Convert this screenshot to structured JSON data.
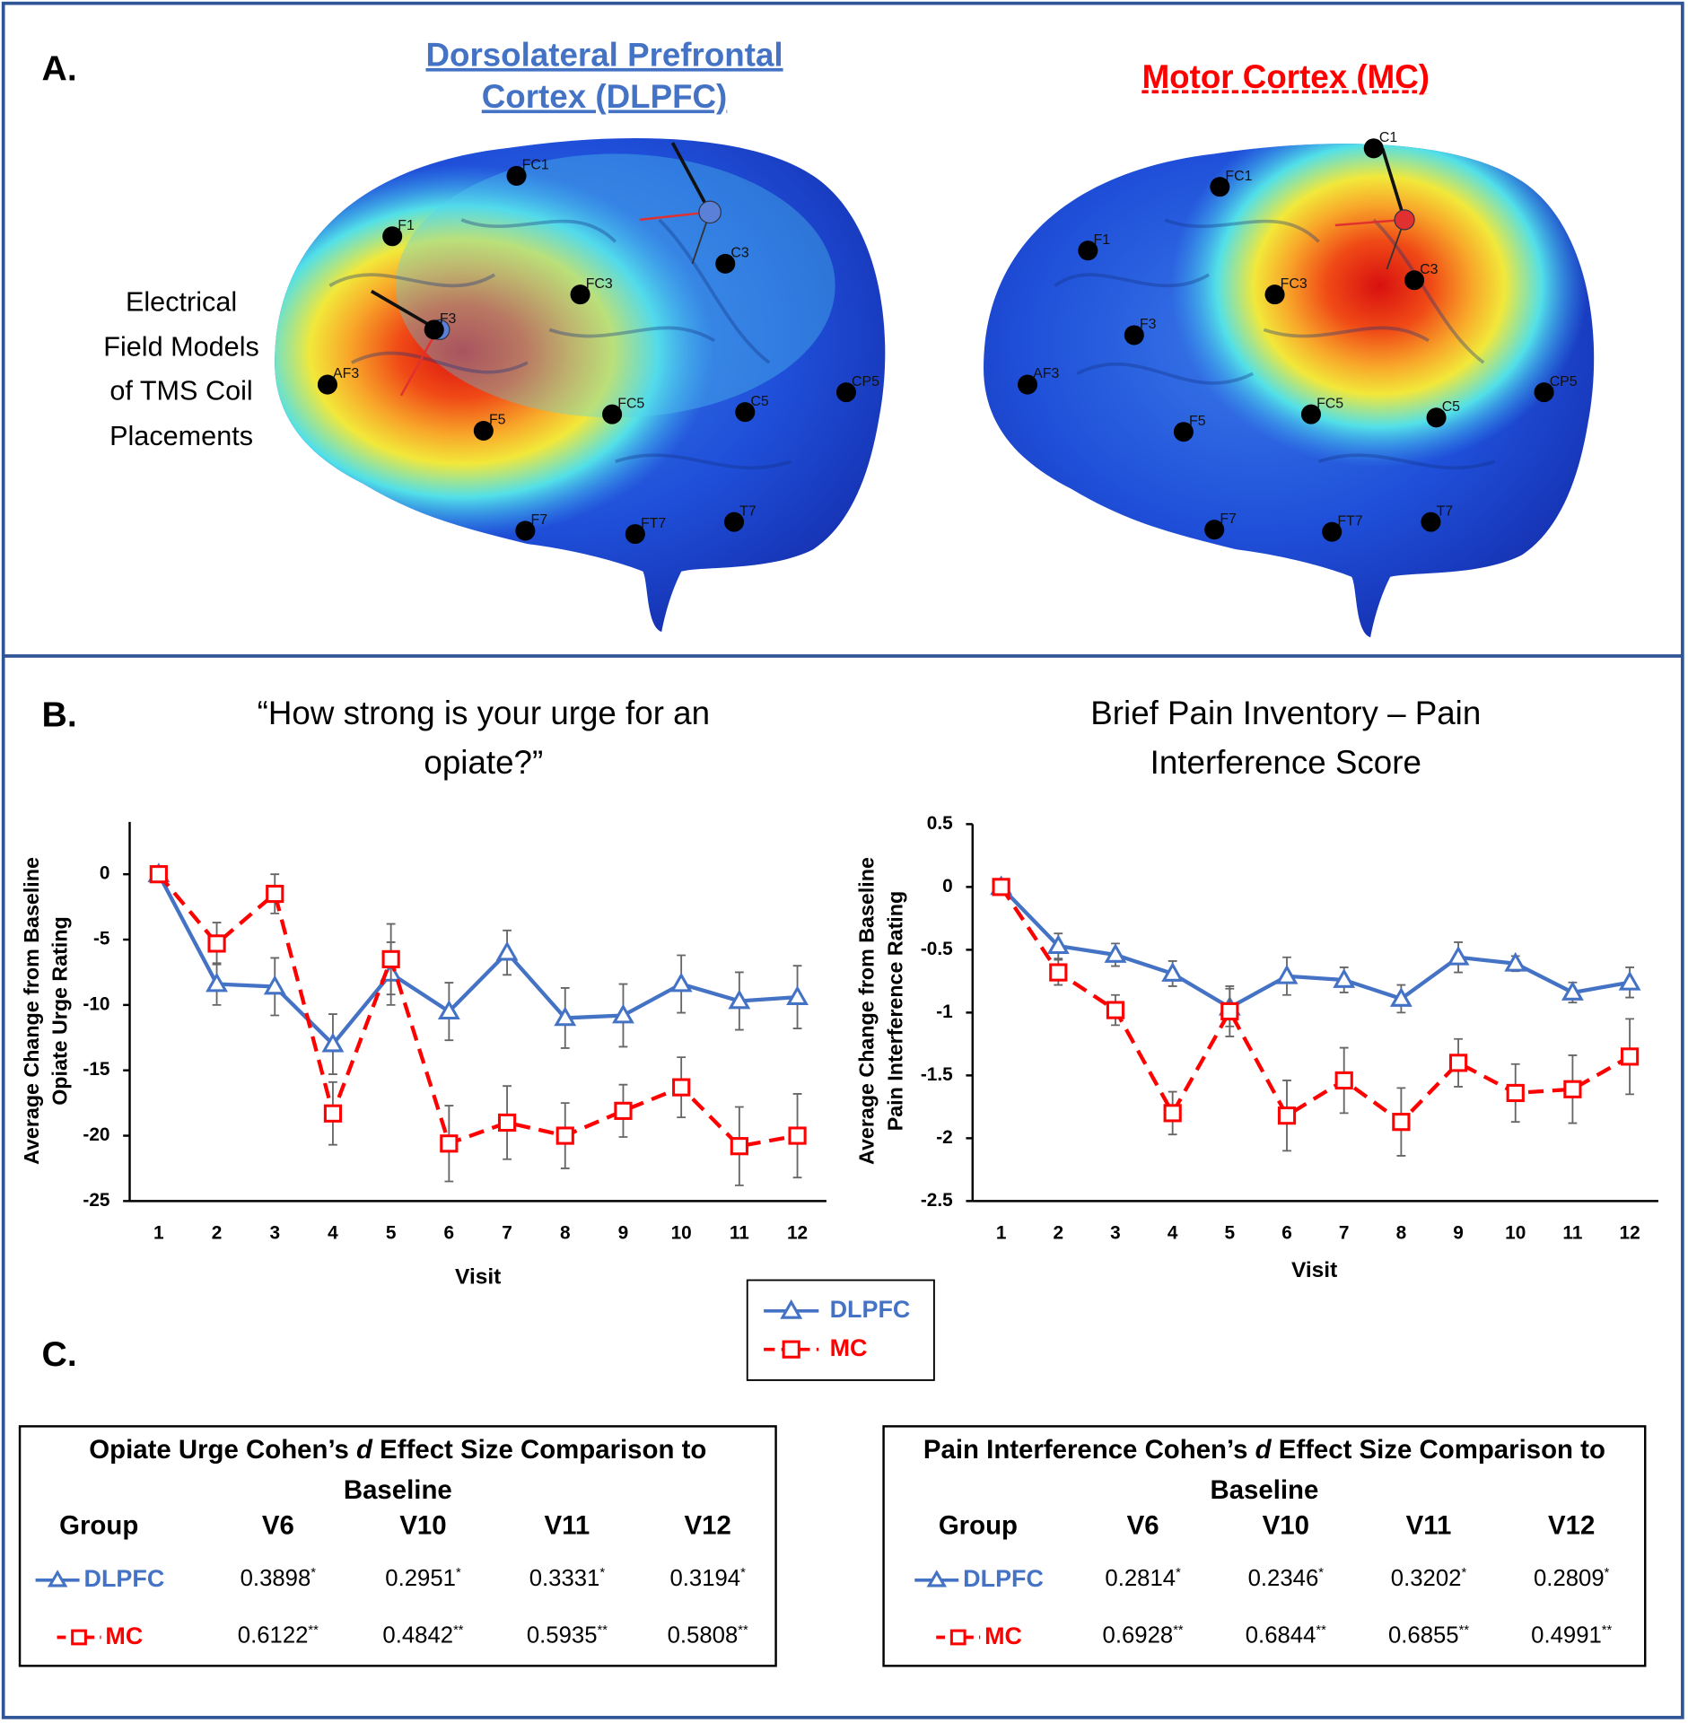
{
  "panel_a": {
    "label": "A.",
    "side_label": [
      "Electrical",
      "Field Models",
      "of TMS Coil",
      "Placements"
    ],
    "brains": [
      {
        "title": [
          "Dorsolateral Prefrontal",
          "Cortex (DLPFC)"
        ],
        "color": "#4472c4",
        "electrodes": [
          "FC1",
          "F1",
          "FC3",
          "C3",
          "F3",
          "AF3",
          "F5",
          "FC5",
          "C5",
          "CP5",
          "F7",
          "FT7",
          "T7"
        ]
      },
      {
        "title": [
          "Motor Cortex (MC)"
        ],
        "color": "#ff0000",
        "electrodes": [
          "C1",
          "FC1",
          "F1",
          "FC3",
          "C3",
          "F3",
          "AF3",
          "F5",
          "FC5",
          "C5",
          "CP5",
          "F7",
          "FT7",
          "T7"
        ]
      }
    ]
  },
  "panel_b": {
    "label": "B."
  },
  "chart_data": [
    {
      "type": "line",
      "title": "“How strong is your urge for an opiate?”",
      "xlabel": "Visit",
      "ylabel": [
        "Average Change from Baseline",
        "Opiate Urge Rating"
      ],
      "x": [
        1,
        2,
        3,
        4,
        5,
        6,
        7,
        8,
        9,
        10,
        11,
        12
      ],
      "xlim": [
        0.5,
        12.5
      ],
      "xticks": [
        1,
        2,
        3,
        4,
        5,
        6,
        7,
        8,
        9,
        10,
        11,
        12
      ],
      "ylim": [
        -25,
        4
      ],
      "yticks": [
        -25,
        -20,
        -15,
        -10,
        -5,
        0
      ],
      "series": [
        {
          "name": "DLPFC",
          "color": "#4472c4",
          "marker": "triangle",
          "line_style": "solid",
          "values": [
            0,
            -8.4,
            -8.6,
            -13,
            -7.6,
            -10.5,
            -6,
            -11,
            -10.8,
            -8.4,
            -9.7,
            -9.4
          ],
          "errors": [
            0,
            1.6,
            2.2,
            2.3,
            2.4,
            2.2,
            1.7,
            2.3,
            2.4,
            2.2,
            2.2,
            2.4
          ]
        },
        {
          "name": "MC",
          "color": "#ff0000",
          "marker": "square",
          "line_style": "dashed",
          "values": [
            0,
            -5.3,
            -1.5,
            -18.3,
            -6.5,
            -20.6,
            -19,
            -20,
            -18.1,
            -16.3,
            -20.8,
            -20
          ],
          "errors": [
            0,
            1.6,
            1.5,
            2.4,
            2.7,
            2.9,
            2.8,
            2.5,
            2,
            2.3,
            3,
            3.2
          ]
        }
      ]
    },
    {
      "type": "line",
      "title": "Brief Pain Inventory – Pain Interference Score",
      "xlabel": "Visit",
      "ylabel": [
        "Average Change from Baseline",
        "Pain Interference Rating"
      ],
      "x": [
        1,
        2,
        3,
        4,
        5,
        6,
        7,
        8,
        9,
        10,
        11,
        12
      ],
      "xlim": [
        0.5,
        12.5
      ],
      "xticks": [
        1,
        2,
        3,
        4,
        5,
        6,
        7,
        8,
        9,
        10,
        11,
        12
      ],
      "ylim": [
        -2.5,
        0.5
      ],
      "yticks": [
        -2.5,
        -2,
        -1.5,
        -1,
        -0.5,
        0,
        0.5
      ],
      "series": [
        {
          "name": "DLPFC",
          "color": "#4472c4",
          "marker": "triangle",
          "line_style": "solid",
          "values": [
            0,
            -0.47,
            -0.54,
            -0.69,
            -0.96,
            -0.71,
            -0.74,
            -0.89,
            -0.56,
            -0.61,
            -0.84,
            -0.76
          ],
          "errors": [
            0,
            0.1,
            0.09,
            0.1,
            0.15,
            0.15,
            0.1,
            0.11,
            0.12,
            0.06,
            0.08,
            0.12
          ]
        },
        {
          "name": "MC",
          "color": "#ff0000",
          "marker": "square",
          "line_style": "dashed",
          "values": [
            0,
            -0.68,
            -0.98,
            -1.8,
            -0.99,
            -1.82,
            -1.54,
            -1.87,
            -1.4,
            -1.64,
            -1.61,
            -1.35
          ],
          "errors": [
            0,
            0.1,
            0.12,
            0.17,
            0.2,
            0.28,
            0.26,
            0.27,
            0.19,
            0.23,
            0.27,
            0.3
          ]
        }
      ]
    }
  ],
  "panel_c": {
    "label": "C.",
    "tables": [
      {
        "title_parts": [
          "Opiate Urge Cohen’s ",
          "d",
          " Effect Size Comparison to Baseline"
        ],
        "header": [
          "Group",
          "V6",
          "V10",
          "V11",
          "V12"
        ],
        "rows": [
          {
            "group": "DLPFC",
            "values": [
              0.3898,
              0.2951,
              0.3331,
              0.3194
            ],
            "sig": "*"
          },
          {
            "group": "MC",
            "values": [
              0.6122,
              0.4842,
              0.5935,
              0.5808
            ],
            "sig": "**"
          }
        ]
      },
      {
        "title_parts": [
          "Pain Interference Cohen’s ",
          "d",
          " Effect Size Comparison to Baseline"
        ],
        "header": [
          "Group",
          "V6",
          "V10",
          "V11",
          "V12"
        ],
        "rows": [
          {
            "group": "DLPFC",
            "values": [
              0.2814,
              0.2346,
              0.3202,
              0.2809
            ],
            "sig": "*"
          },
          {
            "group": "MC",
            "values": [
              0.6928,
              0.6844,
              0.6855,
              0.4991
            ],
            "sig": "**"
          }
        ]
      }
    ]
  }
}
